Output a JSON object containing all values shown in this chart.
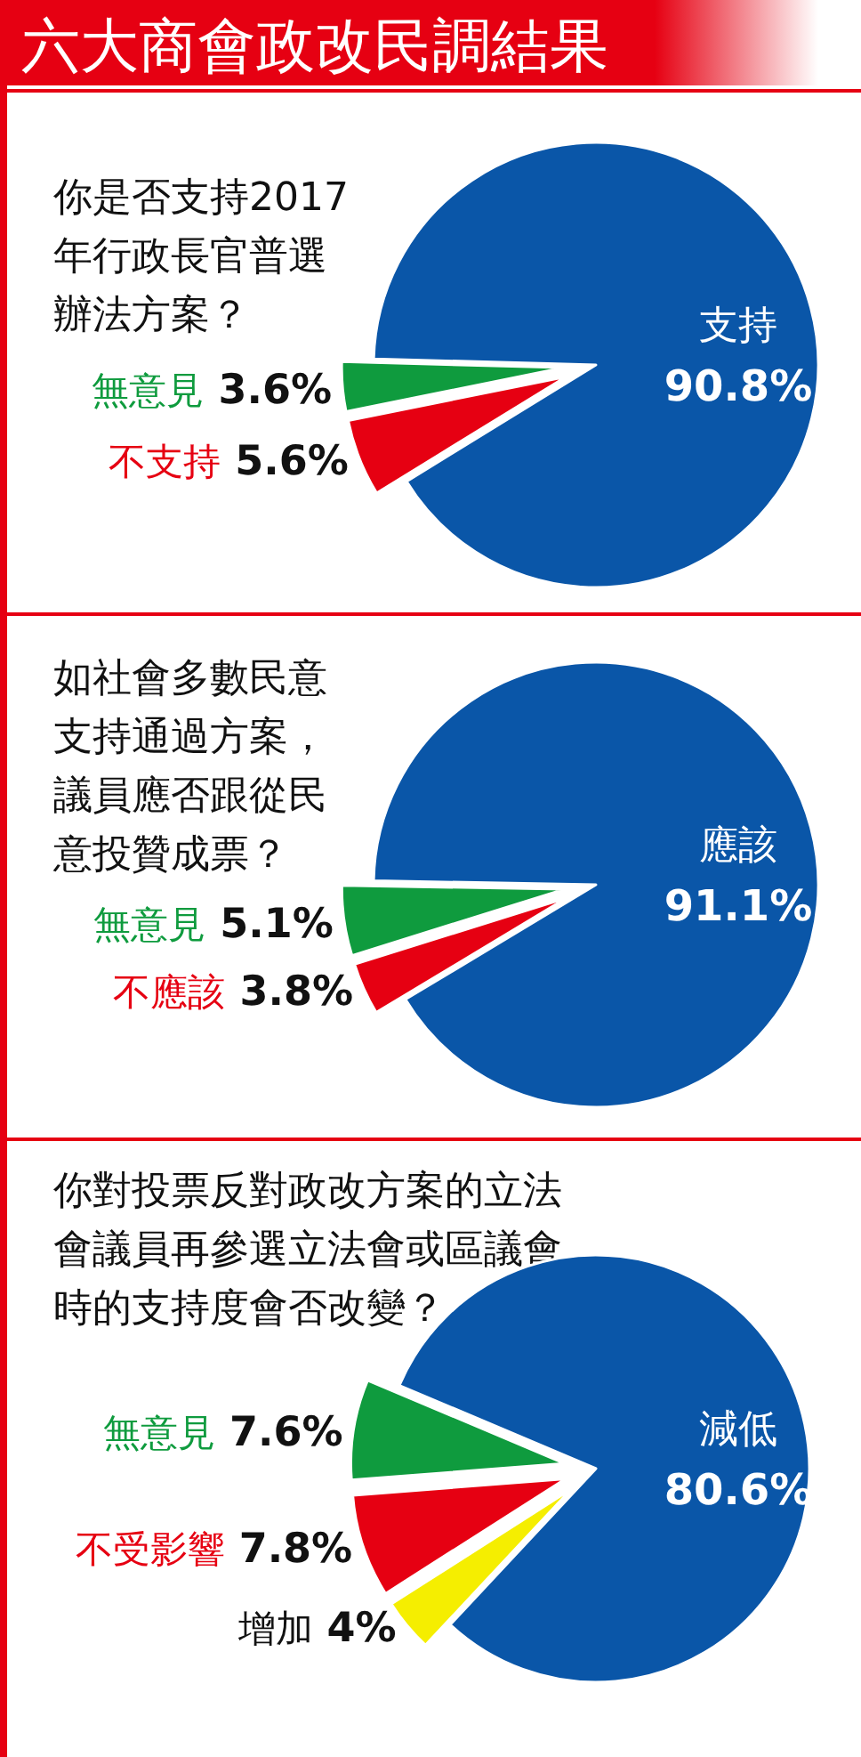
{
  "chart_data": [
    {
      "type": "pie",
      "title": "六大商會政改民調結果",
      "subtitle": "你是否支持2017年行政長官普選辦法方案？",
      "categories": [
        "支持",
        "無意見",
        "不支持"
      ],
      "values": [
        90.8,
        3.6,
        5.6
      ],
      "colors": [
        "#0a56a8",
        "#0f9b3e",
        "#e60012"
      ],
      "value_labels": [
        "90.8%",
        "3.6%",
        "5.6%"
      ]
    },
    {
      "type": "pie",
      "title": "如社會多數民意支持通過方案，議員應否跟從民意投贊成票？",
      "categories": [
        "應該",
        "無意見",
        "不應該"
      ],
      "values": [
        91.1,
        5.1,
        3.8
      ],
      "colors": [
        "#0a56a8",
        "#0f9b3e",
        "#e60012"
      ],
      "value_labels": [
        "91.1%",
        "5.1%",
        "3.8%"
      ]
    },
    {
      "type": "pie",
      "title": "你對投票反對政改方案的立法會議員再參選立法會或區議會時的支持度會否改變？",
      "categories": [
        "減低",
        "無意見",
        "不受影響",
        "增加"
      ],
      "values": [
        80.6,
        7.6,
        7.8,
        4
      ],
      "colors": [
        "#0a56a8",
        "#0f9b3e",
        "#e60012",
        "#f5ee00"
      ],
      "value_labels": [
        "80.6%",
        "7.6%",
        "7.8%",
        "4%"
      ]
    }
  ]
}
